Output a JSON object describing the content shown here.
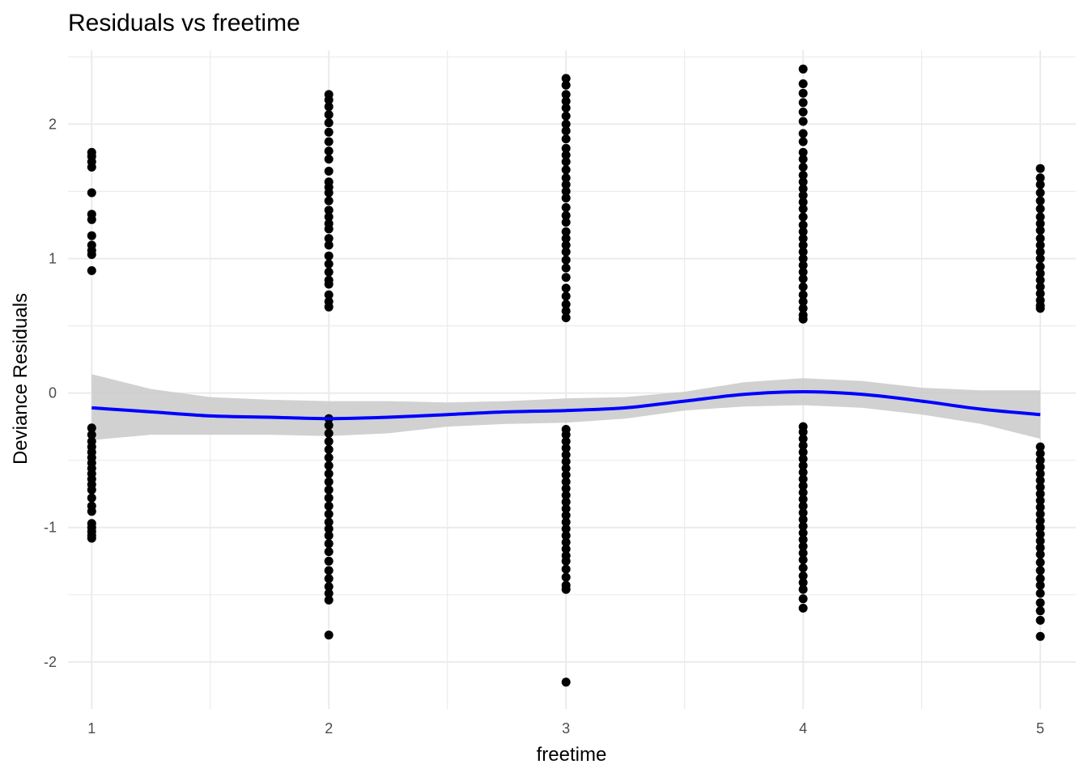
{
  "chart_data": {
    "type": "scatter",
    "title": "Residuals vs freetime",
    "xlabel": "freetime",
    "ylabel": "Deviance Residuals",
    "xlim": [
      0.9,
      5.15
    ],
    "ylim": [
      -2.35,
      2.55
    ],
    "x_ticks": [
      1,
      2,
      3,
      4,
      5
    ],
    "x_tick_labels": [
      "1",
      "2",
      "3",
      "4",
      "5"
    ],
    "y_ticks": [
      -2,
      -1,
      0,
      1,
      2
    ],
    "y_tick_labels": [
      "-2",
      "-1",
      "0",
      "1",
      "2"
    ],
    "grid": true,
    "colors": {
      "points": "#000000",
      "smooth_line": "#0000ff",
      "ribbon": "#cccccc",
      "grid": "#ebebeb"
    },
    "points": [
      {
        "x": 1,
        "y": [
          1.79,
          1.76,
          1.72,
          1.68,
          1.49,
          1.33,
          1.29,
          1.17,
          1.1,
          1.06,
          1.03,
          0.91,
          -0.26,
          -0.31,
          -0.36,
          -0.4,
          -0.44,
          -0.48,
          -0.52,
          -0.56,
          -0.6,
          -0.64,
          -0.68,
          -0.72,
          -0.78,
          -0.84,
          -0.88,
          -0.97,
          -1.0,
          -1.03,
          -1.06,
          -1.08
        ]
      },
      {
        "x": 2,
        "y": [
          2.22,
          2.18,
          2.13,
          2.07,
          2.01,
          1.94,
          1.87,
          1.8,
          1.74,
          1.65,
          1.57,
          1.53,
          1.49,
          1.43,
          1.36,
          1.31,
          1.26,
          1.22,
          1.15,
          1.1,
          1.02,
          0.96,
          0.9,
          0.84,
          0.81,
          0.73,
          0.68,
          0.64,
          -0.19,
          -0.24,
          -0.3,
          -0.36,
          -0.42,
          -0.48,
          -0.54,
          -0.6,
          -0.66,
          -0.72,
          -0.78,
          -0.84,
          -0.9,
          -0.96,
          -1.01,
          -1.06,
          -1.12,
          -1.18,
          -1.25,
          -1.32,
          -1.38,
          -1.44,
          -1.49,
          -1.54,
          -1.8
        ]
      },
      {
        "x": 3,
        "y": [
          2.34,
          2.29,
          2.22,
          2.17,
          2.12,
          2.06,
          2.0,
          1.95,
          1.89,
          1.82,
          1.77,
          1.72,
          1.66,
          1.6,
          1.55,
          1.5,
          1.45,
          1.38,
          1.32,
          1.27,
          1.2,
          1.15,
          1.1,
          1.05,
          0.99,
          0.93,
          0.86,
          0.78,
          0.72,
          0.66,
          0.61,
          0.56,
          -0.27,
          -0.31,
          -0.36,
          -0.41,
          -0.46,
          -0.51,
          -0.56,
          -0.61,
          -0.66,
          -0.71,
          -0.76,
          -0.81,
          -0.86,
          -0.91,
          -0.96,
          -1.01,
          -1.06,
          -1.11,
          -1.16,
          -1.21,
          -1.25,
          -1.31,
          -1.37,
          -1.43,
          -1.46,
          -2.15
        ]
      },
      {
        "x": 4,
        "y": [
          2.41,
          2.3,
          2.23,
          2.16,
          2.09,
          2.02,
          1.93,
          1.87,
          1.79,
          1.74,
          1.68,
          1.62,
          1.57,
          1.52,
          1.47,
          1.42,
          1.37,
          1.31,
          1.25,
          1.2,
          1.15,
          1.1,
          1.05,
          1.0,
          0.95,
          0.9,
          0.85,
          0.79,
          0.73,
          0.68,
          0.63,
          0.58,
          0.55,
          -0.25,
          -0.29,
          -0.34,
          -0.39,
          -0.44,
          -0.49,
          -0.54,
          -0.59,
          -0.64,
          -0.69,
          -0.74,
          -0.79,
          -0.84,
          -0.89,
          -0.94,
          -0.99,
          -1.04,
          -1.09,
          -1.14,
          -1.19,
          -1.24,
          -1.3,
          -1.36,
          -1.41,
          -1.46,
          -1.53,
          -1.6
        ]
      },
      {
        "x": 5,
        "y": [
          1.67,
          1.6,
          1.55,
          1.49,
          1.43,
          1.37,
          1.31,
          1.26,
          1.21,
          1.15,
          1.1,
          1.05,
          1.0,
          0.94,
          0.89,
          0.84,
          0.79,
          0.74,
          0.69,
          0.65,
          0.63,
          -0.4,
          -0.45,
          -0.5,
          -0.55,
          -0.6,
          -0.65,
          -0.7,
          -0.75,
          -0.8,
          -0.85,
          -0.9,
          -0.95,
          -1.0,
          -1.05,
          -1.1,
          -1.15,
          -1.2,
          -1.26,
          -1.32,
          -1.38,
          -1.43,
          -1.49,
          -1.56,
          -1.62,
          -1.69,
          -1.81
        ]
      }
    ],
    "smooth": {
      "x": [
        1,
        1.25,
        1.5,
        1.75,
        2,
        2.25,
        2.5,
        2.75,
        3,
        3.25,
        3.5,
        3.75,
        4,
        4.25,
        4.5,
        4.75,
        5
      ],
      "y": [
        -0.11,
        -0.14,
        -0.17,
        -0.18,
        -0.19,
        -0.18,
        -0.16,
        -0.14,
        -0.13,
        -0.11,
        -0.06,
        -0.01,
        0.01,
        -0.01,
        -0.06,
        -0.12,
        -0.16
      ],
      "lower": [
        -0.35,
        -0.31,
        -0.31,
        -0.31,
        -0.32,
        -0.3,
        -0.25,
        -0.23,
        -0.22,
        -0.19,
        -0.13,
        -0.1,
        -0.09,
        -0.11,
        -0.16,
        -0.23,
        -0.34
      ],
      "upper": [
        0.14,
        0.03,
        -0.03,
        -0.05,
        -0.06,
        -0.06,
        -0.07,
        -0.06,
        -0.04,
        -0.03,
        0.01,
        0.08,
        0.11,
        0.09,
        0.04,
        0.02,
        0.02
      ]
    }
  }
}
